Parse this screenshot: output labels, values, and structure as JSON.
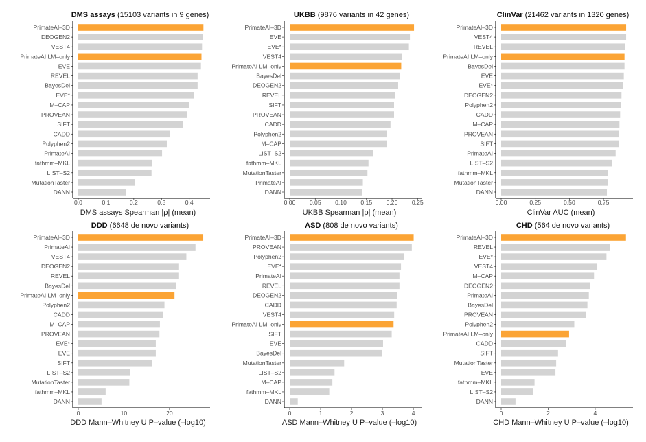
{
  "colors": {
    "highlight": "#FBA435",
    "default": "#D3D3D3",
    "axis": "#000000"
  },
  "highlighted_methods": [
    "PrimateAI-3D",
    "PrimateAI LM-only"
  ],
  "chart_data": [
    {
      "type": "bar",
      "orientation": "horizontal",
      "title_bold": "DMS assays",
      "title_rest": " (15103 variants in 9 genes)",
      "xlabel": "DMS assays Spearman |ρ| (mean)",
      "xlim": [
        0,
        0.47
      ],
      "ticks": [
        0,
        0.1,
        0.2,
        0.3,
        0.4
      ],
      "tick_labels": [
        "0.0",
        "0.1",
        "0.2",
        "0.3",
        "0.4"
      ],
      "categories": [
        "PrimateAI–3D",
        "DEOGEN2",
        "VEST4",
        "PrimateAI LM–only",
        "EVE",
        "REVEL",
        "BayesDel",
        "EVE*",
        "M–CAP",
        "PROVEAN",
        "SIFT",
        "CADD",
        "Polyphen2",
        "PrimateAI",
        "fathmm–MKL",
        "LIST–S2",
        "MutationTaster",
        "DANN"
      ],
      "values": [
        0.451,
        0.45,
        0.446,
        0.444,
        0.442,
        0.43,
        0.43,
        0.417,
        0.4,
        0.393,
        0.376,
        0.331,
        0.319,
        0.302,
        0.267,
        0.264,
        0.203,
        0.172
      ]
    },
    {
      "type": "bar",
      "orientation": "horizontal",
      "title_bold": "UKBB",
      "title_rest": " (9876 variants in 42 genes)",
      "xlabel": "UKBB Spearman |ρ| (mean)",
      "xlim": [
        0,
        0.255
      ],
      "ticks": [
        0,
        0.05,
        0.1,
        0.15,
        0.2,
        0.25
      ],
      "tick_labels": [
        "0.00",
        "0.05",
        "0.10",
        "0.15",
        "0.20",
        "0.25"
      ],
      "categories": [
        "PrimateAI–3D",
        "EVE",
        "EVE*",
        "VEST4",
        "PrimateAI LM–only",
        "BayesDel",
        "DEOGEN2",
        "REVEL",
        "SIFT",
        "PROVEAN",
        "CADD",
        "Polyphen2",
        "M–CAP",
        "LIST–S2",
        "fathmm–MKL",
        "MutationTaster",
        "PrimateAI",
        "DANN"
      ],
      "values": [
        0.243,
        0.235,
        0.233,
        0.219,
        0.218,
        0.215,
        0.212,
        0.206,
        0.204,
        0.204,
        0.197,
        0.19,
        0.19,
        0.163,
        0.154,
        0.152,
        0.143,
        0.141
      ]
    },
    {
      "type": "bar",
      "orientation": "horizontal",
      "title_bold": "ClinVar",
      "title_rest": " (21462 variants in 1320 genes)",
      "xlabel": "ClinVar AUC (mean)",
      "xlim": [
        0,
        0.956
      ],
      "ticks": [
        0,
        0.25,
        0.5,
        0.75
      ],
      "tick_labels": [
        "0.00",
        "0.25",
        "0.50",
        "0.75"
      ],
      "categories": [
        "PrimateAI–3D",
        "VEST4",
        "REVEL",
        "PrimateAI LM–only",
        "BayesDel",
        "EVE",
        "EVE*",
        "DEOGEN2",
        "Polyphen2",
        "CADD",
        "M–CAP",
        "PROVEAN",
        "SIFT",
        "PrimateAI",
        "LIST–S2",
        "fathmm–MKL",
        "MutationTaster",
        "DANN"
      ],
      "values": [
        0.916,
        0.916,
        0.909,
        0.904,
        0.904,
        0.899,
        0.894,
        0.882,
        0.877,
        0.872,
        0.867,
        0.862,
        0.862,
        0.839,
        0.814,
        0.78,
        0.78,
        0.775
      ]
    },
    {
      "type": "bar",
      "orientation": "horizontal",
      "title_bold": "DDD",
      "title_rest": " (6648 de novo variants)",
      "xlabel": "DDD Mann–Whitney U P–value (–log10)",
      "xlim": [
        0,
        28.6
      ],
      "ticks": [
        0,
        10,
        20
      ],
      "tick_labels": [
        "0",
        "10",
        "20"
      ],
      "categories": [
        "PrimateAI–3D",
        "PrimateAI",
        "VEST4",
        "DEOGEN2",
        "REVEL",
        "BayesDel",
        "PrimateAI LM–only",
        "Polyphen2",
        "CADD",
        "M–CAP",
        "PROVEAN",
        "EVE*",
        "EVE",
        "SIFT",
        "LIST–S2",
        "MutationTaster",
        "fathmm–MKL",
        "DANN"
      ],
      "values": [
        27.4,
        25.7,
        23.7,
        22.1,
        22.1,
        21.4,
        21.1,
        18.9,
        18.6,
        17.9,
        17.8,
        17.0,
        17.0,
        16.2,
        11.3,
        11.2,
        6.0,
        5.1
      ]
    },
    {
      "type": "bar",
      "orientation": "horizontal",
      "title_bold": "ASD",
      "title_rest": " (808 de novo variants)",
      "xlabel": "ASD Mann–Whitney U P–value (–log10)",
      "xlim": [
        0,
        4.22
      ],
      "ticks": [
        0,
        1,
        2,
        3,
        4
      ],
      "tick_labels": [
        "0",
        "1",
        "2",
        "3",
        "4"
      ],
      "categories": [
        "PrimateAI–3D",
        "PROVEAN",
        "Polyphen2",
        "EVE*",
        "PrimateAI",
        "REVEL",
        "DEOGEN2",
        "CADD",
        "VEST4",
        "PrimateAI LM–only",
        "SIFT",
        "EVE",
        "BayesDel",
        "MutationTaster",
        "LIST–S2",
        "M–CAP",
        "fathmm–MKL",
        "DANN"
      ],
      "values": [
        4.01,
        3.95,
        3.7,
        3.6,
        3.55,
        3.55,
        3.48,
        3.46,
        3.38,
        3.36,
        3.3,
        3.02,
        2.98,
        1.76,
        1.45,
        1.38,
        1.28,
        0.26
      ]
    },
    {
      "type": "bar",
      "orientation": "horizontal",
      "title_bold": "CHD",
      "title_rest": " (564 de novo variants)",
      "xlabel": "CHD Mann–Whitney U P–value (–log10)",
      "xlim": [
        0,
        5.55
      ],
      "ticks": [
        0,
        2,
        4
      ],
      "tick_labels": [
        "0",
        "2",
        "4"
      ],
      "categories": [
        "PrimateAI–3D",
        "REVEL",
        "EVE*",
        "VEST4",
        "M–CAP",
        "DEOGEN2",
        "PrimateAI",
        "BayesDel",
        "PROVEAN",
        "Polyphen2",
        "PrimateAI LM–only",
        "CADD",
        "SIFT",
        "MutationTaster",
        "EVE",
        "fathmm–MKL",
        "LIST–S2",
        "DANN"
      ],
      "values": [
        5.31,
        4.64,
        4.48,
        4.09,
        3.95,
        3.79,
        3.73,
        3.67,
        3.61,
        3.11,
        2.89,
        2.75,
        2.42,
        2.34,
        2.31,
        1.42,
        1.36,
        0.61
      ]
    }
  ]
}
